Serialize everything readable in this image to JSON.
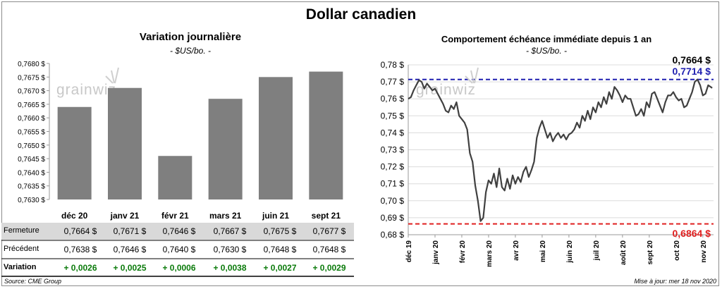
{
  "title": "Dollar canadien",
  "left_chart": {
    "title": "Variation  journalière",
    "subtitle": "- $US/bo. -",
    "watermark": "grainwiz"
  },
  "right_chart": {
    "title": "Comportement échéance immédiate depuis 1 an",
    "subtitle": "- $US/bo. -",
    "watermark": "grainwiz",
    "last_value_label": "0,7664 $",
    "high_label": "0,7714 $",
    "low_label": "0,6864 $"
  },
  "table": {
    "rows": [
      {
        "label": "Fermeture",
        "values": [
          "0,7664  $",
          "0,7671  $",
          "0,7646  $",
          "0,7667  $",
          "0,7675  $",
          "0,7677  $"
        ]
      },
      {
        "label": "Précédent",
        "values": [
          "0,7638  $",
          "0,7646  $",
          "0,7640  $",
          "0,7630  $",
          "0,7648  $",
          "0,7648  $"
        ]
      },
      {
        "label": "Variation",
        "values": [
          "+ 0,0026",
          "+ 0,0025",
          "+ 0,0006",
          "+ 0,0038",
          "+ 0,0027",
          "+ 0,0029"
        ]
      }
    ]
  },
  "footer": {
    "source": "Source: CME Group",
    "update": "Mise à jour: mer 18 nov 2020"
  },
  "colors": {
    "bar": "#7f7f7f",
    "line": "#404040",
    "high_line": "#1f1fb0",
    "low_line": "#e02020",
    "positive": "#0a7a0a",
    "row_shade": "#d9d9d9"
  },
  "chart_data": [
    {
      "type": "bar",
      "categories": [
        "déc 20",
        "janv 21",
        "févr 21",
        "mars 21",
        "juin 21",
        "sept 21"
      ],
      "values": [
        0.7664,
        0.7671,
        0.7646,
        0.7667,
        0.7675,
        0.7677
      ],
      "ylim": [
        0.763,
        0.768
      ],
      "yticks": [
        "0,7630 $",
        "0,7635 $",
        "0,7640 $",
        "0,7645 $",
        "0,7650 $",
        "0,7655 $",
        "0,7660 $",
        "0,7665 $",
        "0,7670 $",
        "0,7675 $",
        "0,7680 $"
      ],
      "grid": false
    },
    {
      "type": "line",
      "ylim": [
        0.68,
        0.78
      ],
      "yticks": [
        "0,68 $",
        "0,69 $",
        "0,70 $",
        "0,71 $",
        "0,72 $",
        "0,73 $",
        "0,74 $",
        "0,75 $",
        "0,76 $",
        "0,77 $",
        "0,78 $"
      ],
      "xticks": [
        "déc 19",
        "janv 20",
        "févr 20",
        "mars 20",
        "avr 20",
        "mai 20",
        "juin 20",
        "juil 20",
        "août 20",
        "sept 20",
        "oct 20",
        "nov 20"
      ],
      "grid": true,
      "hlines": [
        {
          "value": 0.7714,
          "style": "dashed"
        },
        {
          "value": 0.6864,
          "style": "dashed"
        }
      ],
      "x": [
        0,
        0.1,
        0.2,
        0.3,
        0.4,
        0.5,
        0.6,
        0.7,
        0.8,
        0.9,
        1.0,
        1.1,
        1.2,
        1.3,
        1.4,
        1.5,
        1.6,
        1.7,
        1.8,
        1.9,
        2.0,
        2.1,
        2.2,
        2.3,
        2.4,
        2.5,
        2.6,
        2.7,
        2.8,
        2.9,
        3.0,
        3.1,
        3.2,
        3.3,
        3.4,
        3.5,
        3.6,
        3.7,
        3.8,
        3.9,
        4.0,
        4.1,
        4.2,
        4.3,
        4.4,
        4.5,
        4.6,
        4.7,
        4.8,
        4.9,
        5.0,
        5.1,
        5.2,
        5.3,
        5.4,
        5.5,
        5.6,
        5.7,
        5.8,
        5.9,
        6.0,
        6.1,
        6.2,
        6.3,
        6.4,
        6.5,
        6.6,
        6.7,
        6.8,
        6.9,
        7.0,
        7.1,
        7.2,
        7.3,
        7.4,
        7.5,
        7.6,
        7.7,
        7.8,
        7.9,
        8.0,
        8.1,
        8.2,
        8.3,
        8.4,
        8.5,
        8.6,
        8.7,
        8.8,
        8.9,
        9.0,
        9.1,
        9.2,
        9.3,
        9.4,
        9.5,
        9.6,
        9.7,
        9.8,
        9.9,
        10.0,
        10.1,
        10.2,
        10.3,
        10.4,
        10.5,
        10.6,
        10.7,
        10.8,
        10.9,
        11.0,
        11.1,
        11.2,
        11.35
      ],
      "y": [
        0.76,
        0.761,
        0.765,
        0.768,
        0.771,
        0.77,
        0.766,
        0.769,
        0.767,
        0.765,
        0.766,
        0.763,
        0.76,
        0.757,
        0.753,
        0.752,
        0.756,
        0.754,
        0.758,
        0.75,
        0.748,
        0.746,
        0.742,
        0.728,
        0.723,
        0.709,
        0.7,
        0.688,
        0.69,
        0.705,
        0.712,
        0.71,
        0.716,
        0.708,
        0.719,
        0.708,
        0.706,
        0.713,
        0.707,
        0.715,
        0.71,
        0.714,
        0.711,
        0.717,
        0.72,
        0.714,
        0.718,
        0.723,
        0.737,
        0.743,
        0.747,
        0.742,
        0.737,
        0.74,
        0.735,
        0.738,
        0.74,
        0.737,
        0.739,
        0.736,
        0.739,
        0.74,
        0.742,
        0.746,
        0.743,
        0.75,
        0.747,
        0.753,
        0.748,
        0.755,
        0.752,
        0.758,
        0.755,
        0.761,
        0.757,
        0.764,
        0.76,
        0.767,
        0.765,
        0.762,
        0.758,
        0.762,
        0.76,
        0.76,
        0.755,
        0.75,
        0.751,
        0.754,
        0.75,
        0.758,
        0.755,
        0.763,
        0.764,
        0.76,
        0.756,
        0.752,
        0.758,
        0.762,
        0.762,
        0.764,
        0.761,
        0.759,
        0.76,
        0.755,
        0.756,
        0.76,
        0.764,
        0.77,
        0.7714,
        0.768,
        0.762,
        0.763,
        0.768,
        0.7664
      ]
    }
  ]
}
